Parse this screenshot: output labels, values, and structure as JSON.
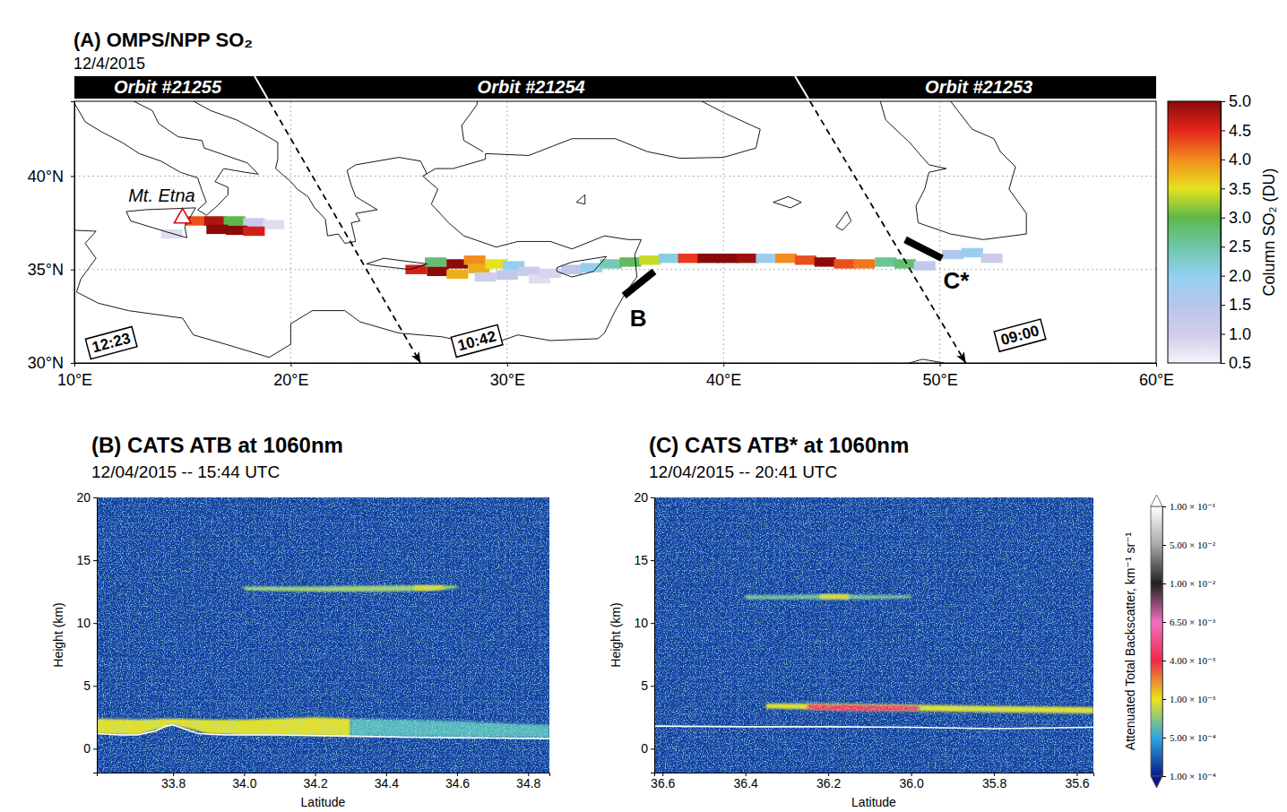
{
  "chart_data": [
    {
      "type": "map",
      "title": "(A) OMPS/NPP SO₂",
      "subtitle": "12/4/2015",
      "xlim": [
        10,
        60
      ],
      "ylim": [
        30,
        44
      ],
      "xticks": [
        {
          "value": 10,
          "label": "10°E"
        },
        {
          "value": 20,
          "label": "20°E"
        },
        {
          "value": 30,
          "label": "30°E"
        },
        {
          "value": 40,
          "label": "40°E"
        },
        {
          "value": 50,
          "label": "50°E"
        },
        {
          "value": 60,
          "label": "60°E"
        }
      ],
      "yticks": [
        {
          "value": 30,
          "label": "30°N"
        },
        {
          "value": 35,
          "label": "35°N"
        },
        {
          "value": 40,
          "label": "40°N"
        }
      ],
      "grid": true,
      "cells": [
        {
          "lon": 14.5,
          "lat": 36.9,
          "value": 0.8
        },
        {
          "lon": 15.6,
          "lat": 37.6,
          "value": 4.3
        },
        {
          "lon": 16.5,
          "lat": 37.6,
          "value": 4.8
        },
        {
          "lon": 17.4,
          "lat": 37.6,
          "value": 3.0
        },
        {
          "lon": 18.3,
          "lat": 37.5,
          "value": 1.2
        },
        {
          "lon": 19.2,
          "lat": 37.4,
          "value": 0.8
        },
        {
          "lon": 16.6,
          "lat": 37.15,
          "value": 5.0
        },
        {
          "lon": 17.5,
          "lat": 37.1,
          "value": 5.0
        },
        {
          "lon": 18.3,
          "lat": 37.05,
          "value": 4.6
        },
        {
          "lon": 25.8,
          "lat": 35.0,
          "value": 4.6
        },
        {
          "lon": 26.7,
          "lat": 35.4,
          "value": 2.8
        },
        {
          "lon": 26.8,
          "lat": 34.9,
          "value": 5.0
        },
        {
          "lon": 27.7,
          "lat": 35.3,
          "value": 5.0
        },
        {
          "lon": 28.5,
          "lat": 35.5,
          "value": 4.0
        },
        {
          "lon": 27.7,
          "lat": 34.75,
          "value": 3.8
        },
        {
          "lon": 28.7,
          "lat": 35.05,
          "value": 3.8
        },
        {
          "lon": 29.5,
          "lat": 35.3,
          "value": 3.5
        },
        {
          "lon": 30.3,
          "lat": 35.2,
          "value": 2.0
        },
        {
          "lon": 30.0,
          "lat": 34.7,
          "value": 1.3
        },
        {
          "lon": 29.0,
          "lat": 34.6,
          "value": 1.0
        },
        {
          "lon": 31.0,
          "lat": 34.9,
          "value": 1.1
        },
        {
          "lon": 31.5,
          "lat": 34.5,
          "value": 0.8
        },
        {
          "lon": 32.0,
          "lat": 34.8,
          "value": 0.9
        },
        {
          "lon": 33.0,
          "lat": 35.0,
          "value": 1.4
        },
        {
          "lon": 33.9,
          "lat": 35.1,
          "value": 2.0
        },
        {
          "lon": 34.8,
          "lat": 35.3,
          "value": 2.4
        },
        {
          "lon": 35.7,
          "lat": 35.4,
          "value": 2.9
        },
        {
          "lon": 36.6,
          "lat": 35.5,
          "value": 3.4
        },
        {
          "lon": 37.5,
          "lat": 35.6,
          "value": 2.1
        },
        {
          "lon": 38.4,
          "lat": 35.6,
          "value": 4.4
        },
        {
          "lon": 39.3,
          "lat": 35.6,
          "value": 5.0
        },
        {
          "lon": 40.2,
          "lat": 35.6,
          "value": 5.0
        },
        {
          "lon": 41.1,
          "lat": 35.6,
          "value": 4.9
        },
        {
          "lon": 42.0,
          "lat": 35.6,
          "value": 1.8
        },
        {
          "lon": 42.9,
          "lat": 35.6,
          "value": 4.0
        },
        {
          "lon": 43.8,
          "lat": 35.5,
          "value": 4.3
        },
        {
          "lon": 44.7,
          "lat": 35.4,
          "value": 5.0
        },
        {
          "lon": 45.6,
          "lat": 35.3,
          "value": 4.3
        },
        {
          "lon": 46.5,
          "lat": 35.3,
          "value": 4.1
        },
        {
          "lon": 47.5,
          "lat": 35.4,
          "value": 2.6
        },
        {
          "lon": 48.4,
          "lat": 35.3,
          "value": 2.8
        },
        {
          "lon": 49.3,
          "lat": 35.2,
          "value": 1.3
        },
        {
          "lon": 50.6,
          "lat": 35.8,
          "value": 1.6
        },
        {
          "lon": 51.5,
          "lat": 35.9,
          "value": 1.9
        },
        {
          "lon": 52.4,
          "lat": 35.6,
          "value": 1.1
        }
      ],
      "colorbar": {
        "label": "Column SO₂ (DU)",
        "range": [
          0.5,
          5
        ],
        "ticks": [
          0.5,
          {
            "value": 1,
            "label": "1.0"
          },
          1.5,
          {
            "value": 2,
            "label": "2.0"
          },
          2.5,
          {
            "value": 3,
            "label": "3.0"
          },
          3.5,
          {
            "value": 4,
            "label": "4.0"
          },
          4.5,
          {
            "value": 5,
            "label": "5.0"
          }
        ],
        "colors": [
          "#f4f4fb",
          "#cfcdea",
          "#b7c6ec",
          "#92d0f0",
          "#6fc7a8",
          "#5cb84a",
          "#e6e21e",
          "#f28c1c",
          "#e4261c",
          "#8a0a0a"
        ]
      },
      "orbits": [
        {
          "name": "Orbit #21255",
          "time": "12:23",
          "time_lon": 11.7,
          "time_lat": 31.1
        },
        {
          "name": "Orbit #21254",
          "time": "10:42",
          "time_lon": 28.6,
          "time_lat": 31.2
        },
        {
          "name": "Orbit #21253",
          "time": "09:00",
          "time_lon": 53.7,
          "time_lat": 31.5
        }
      ],
      "orbit_boundaries": [
        {
          "lon": [
            19,
            26
          ],
          "lat": [
            44,
            30
          ]
        },
        {
          "lon": [
            44,
            51.2
          ],
          "lat": [
            44,
            30
          ]
        }
      ],
      "annotations": [
        {
          "text": "Mt. Etna",
          "lon": 15.0,
          "lat": 37.75,
          "marker": "triangle"
        },
        {
          "text": "B",
          "lon": [
            35.4,
            36.8
          ],
          "lat": [
            33.6,
            34.9
          ]
        },
        {
          "text": "C*",
          "lon": [
            48.4,
            50.1
          ],
          "lat": [
            36.6,
            35.6
          ]
        }
      ]
    },
    {
      "type": "curtain",
      "title": "(B) CATS ATB at 1060nm",
      "subtitle": "12/04/2015 -- 15:44 UTC",
      "x_label": "Latitude",
      "y_label": "Height (km)",
      "xlim": [
        33.585,
        34.86
      ],
      "ylim": [
        -1.9,
        20
      ],
      "xticks": [
        33.8,
        {
          "value": 34,
          "label": "34.0"
        },
        34.2,
        34.4,
        34.6,
        34.8
      ],
      "yticks": [
        0,
        5,
        10,
        15,
        20
      ],
      "background": 0.0002,
      "surface": {
        "lat": [
          33.585,
          33.65,
          33.7,
          33.75,
          33.78,
          33.8,
          33.83,
          33.87,
          33.95,
          34.1,
          34.3,
          34.5,
          34.7,
          34.86
        ],
        "height": [
          1.2,
          1.1,
          1.1,
          1.4,
          1.8,
          1.9,
          1.6,
          1.2,
          1.1,
          1.1,
          1.0,
          0.9,
          0.85,
          0.8
        ]
      },
      "layers": [
        {
          "lat": [
            33.585,
            33.7,
            33.8,
            33.9,
            34.0,
            34.1,
            34.2,
            34.3
          ],
          "bottom": [
            1.2,
            1.1,
            1.9,
            1.2,
            1.1,
            1.1,
            1.05,
            1.0
          ],
          "top": [
            2.4,
            2.3,
            2.4,
            2.3,
            2.3,
            2.4,
            2.5,
            2.4
          ],
          "value": 0.0011
        },
        {
          "lat": [
            34.3,
            34.45,
            34.6,
            34.75,
            34.86
          ],
          "bottom": [
            1.0,
            0.95,
            0.9,
            0.9,
            0.85
          ],
          "top": [
            2.4,
            2.3,
            2.2,
            2.0,
            1.9
          ],
          "value": 0.0006
        },
        {
          "lat": [
            34.0,
            34.2,
            34.4,
            34.55,
            34.6
          ],
          "bottom": [
            12.6,
            12.5,
            12.5,
            12.6,
            12.8
          ],
          "top": [
            12.9,
            12.9,
            13.0,
            13.0,
            13.0
          ],
          "value": 0.0008
        },
        {
          "lat": [
            34.48,
            34.52,
            34.56
          ],
          "bottom": [
            12.6,
            12.6,
            12.7
          ],
          "top": [
            13.0,
            13.0,
            13.0
          ],
          "value": 0.0012
        }
      ]
    },
    {
      "type": "curtain",
      "title": "(C) CATS ATB* at 1060nm",
      "subtitle": "12/04/2015 -- 20:41 UTC",
      "x_label": "Latitude",
      "y_label": "Height (km)",
      "xlim": [
        36.62,
        35.56
      ],
      "ylim": [
        -1.9,
        20
      ],
      "xticks": [
        36.6,
        36.4,
        36.2,
        {
          "value": 36,
          "label": "36.0"
        },
        35.8,
        35.6
      ],
      "yticks": [
        0,
        5,
        10,
        15,
        20
      ],
      "background": 0.0002,
      "surface": {
        "lat": [
          36.62,
          36.4,
          36.2,
          36.0,
          35.8,
          35.56
        ],
        "height": [
          1.8,
          1.75,
          1.75,
          1.7,
          1.6,
          1.7
        ]
      },
      "layers": [
        {
          "lat": [
            36.35,
            36.2,
            36.0,
            35.8,
            35.56
          ],
          "bottom": [
            3.2,
            3.1,
            3.0,
            2.9,
            2.8
          ],
          "top": [
            3.6,
            3.6,
            3.5,
            3.4,
            3.3
          ],
          "value": 0.0011
        },
        {
          "lat": [
            36.25,
            36.15,
            36.05,
            35.98
          ],
          "bottom": [
            3.1,
            3.0,
            3.0,
            3.05
          ],
          "top": [
            3.5,
            3.5,
            3.45,
            3.4
          ],
          "value": 0.0045
        },
        {
          "lat": [
            36.4,
            36.3,
            36.2,
            36.1,
            36.0
          ],
          "bottom": [
            11.9,
            11.9,
            11.9,
            11.9,
            12.0
          ],
          "top": [
            12.2,
            12.2,
            12.3,
            12.2,
            12.2
          ],
          "value": 0.0007
        },
        {
          "lat": [
            36.22,
            36.15
          ],
          "bottom": [
            11.9,
            11.9
          ],
          "top": [
            12.3,
            12.3
          ],
          "value": 0.0012
        }
      ],
      "colorbar": {
        "label": "Attenuated Total Backscatter, km⁻¹ sr⁻¹",
        "range": [
          0.0001,
          0.1
        ],
        "ticks": [
          {
            "value": 0.0001,
            "label": "1.00 × 10⁻⁴"
          },
          {
            "value": 0.0005,
            "label": "5.00 × 10⁻⁴"
          },
          {
            "value": 0.001,
            "label": "1.00 × 10⁻³"
          },
          {
            "value": 0.004,
            "label": "4.00 × 10⁻³"
          },
          {
            "value": 0.0065,
            "label": "6.50 × 10⁻³"
          },
          {
            "value": 0.01,
            "label": "1.00 × 10⁻²"
          },
          {
            "value": 0.05,
            "label": "5.00 × 10⁻²"
          },
          {
            "value": 0.1,
            "label": "1.00 × 10⁻¹"
          }
        ],
        "colors": [
          "#0a1a8a",
          "#2ea8e0",
          "#e8e41c",
          "#f0284a",
          "#f070c0",
          "#202020",
          "#a8a8a8",
          "#ffffff"
        ]
      }
    }
  ]
}
